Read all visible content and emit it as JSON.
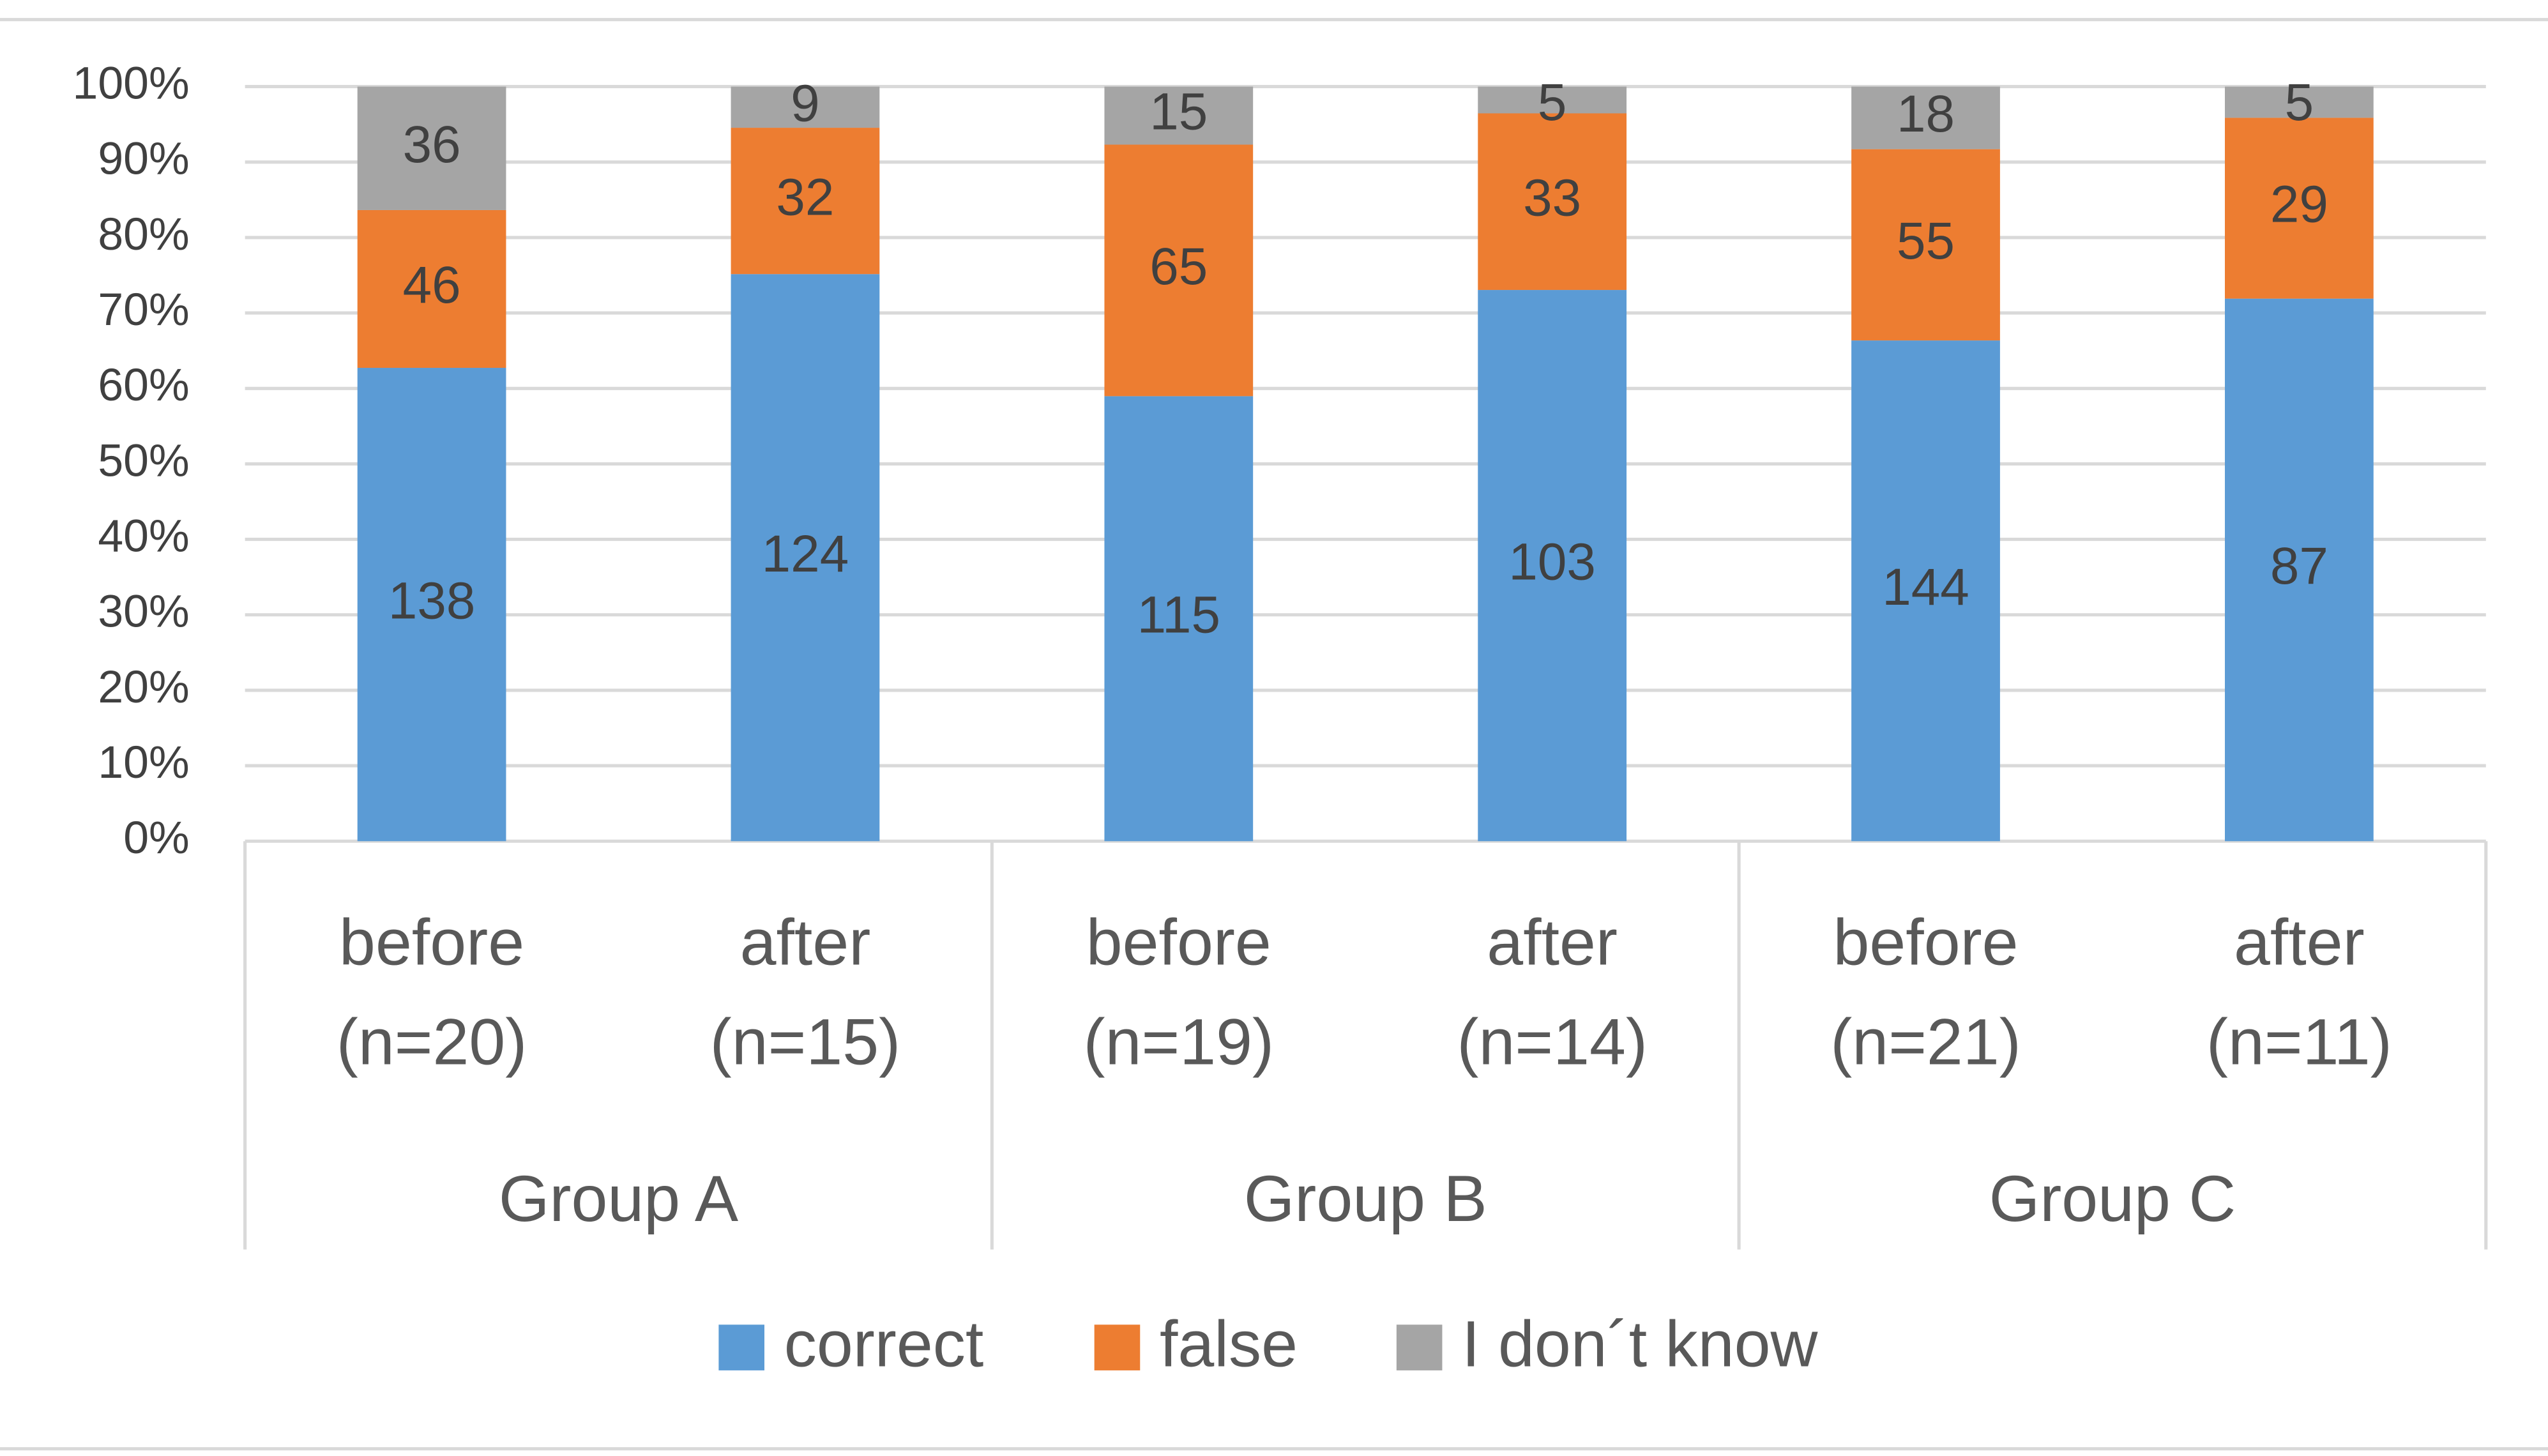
{
  "chart_data": {
    "type": "bar",
    "stacking": "percent",
    "categories": [
      [
        "before",
        "(n=20)"
      ],
      [
        "after",
        "(n=15)"
      ],
      [
        "before",
        "(n=19)"
      ],
      [
        "after",
        "(n=14)"
      ],
      [
        "before",
        "(n=21)"
      ],
      [
        "after",
        "(n=11)"
      ]
    ],
    "groups": [
      "Group A",
      "Group B",
      "Group C"
    ],
    "series": [
      {
        "name": "correct",
        "color": "#5b9bd5",
        "values": [
          138,
          124,
          115,
          103,
          144,
          87
        ]
      },
      {
        "name": "false",
        "color": "#ed7d31",
        "values": [
          46,
          32,
          65,
          33,
          55,
          29
        ]
      },
      {
        "name": "I don´t know",
        "color": "#a5a5a5",
        "values": [
          36,
          9,
          15,
          5,
          18,
          5
        ]
      }
    ],
    "ylim": [
      0,
      100
    ],
    "yticks": [
      {
        "value": 0,
        "label": "0%"
      },
      {
        "value": 10,
        "label": "10%"
      },
      {
        "value": 20,
        "label": "20%"
      },
      {
        "value": 30,
        "label": "30%"
      },
      {
        "value": 40,
        "label": "40%"
      },
      {
        "value": 50,
        "label": "50%"
      },
      {
        "value": 60,
        "label": "60%"
      },
      {
        "value": 70,
        "label": "70%"
      },
      {
        "value": 80,
        "label": "80%"
      },
      {
        "value": 90,
        "label": "90%"
      },
      {
        "value": 100,
        "label": "100%"
      }
    ],
    "grid": true,
    "legend": "bottom"
  }
}
